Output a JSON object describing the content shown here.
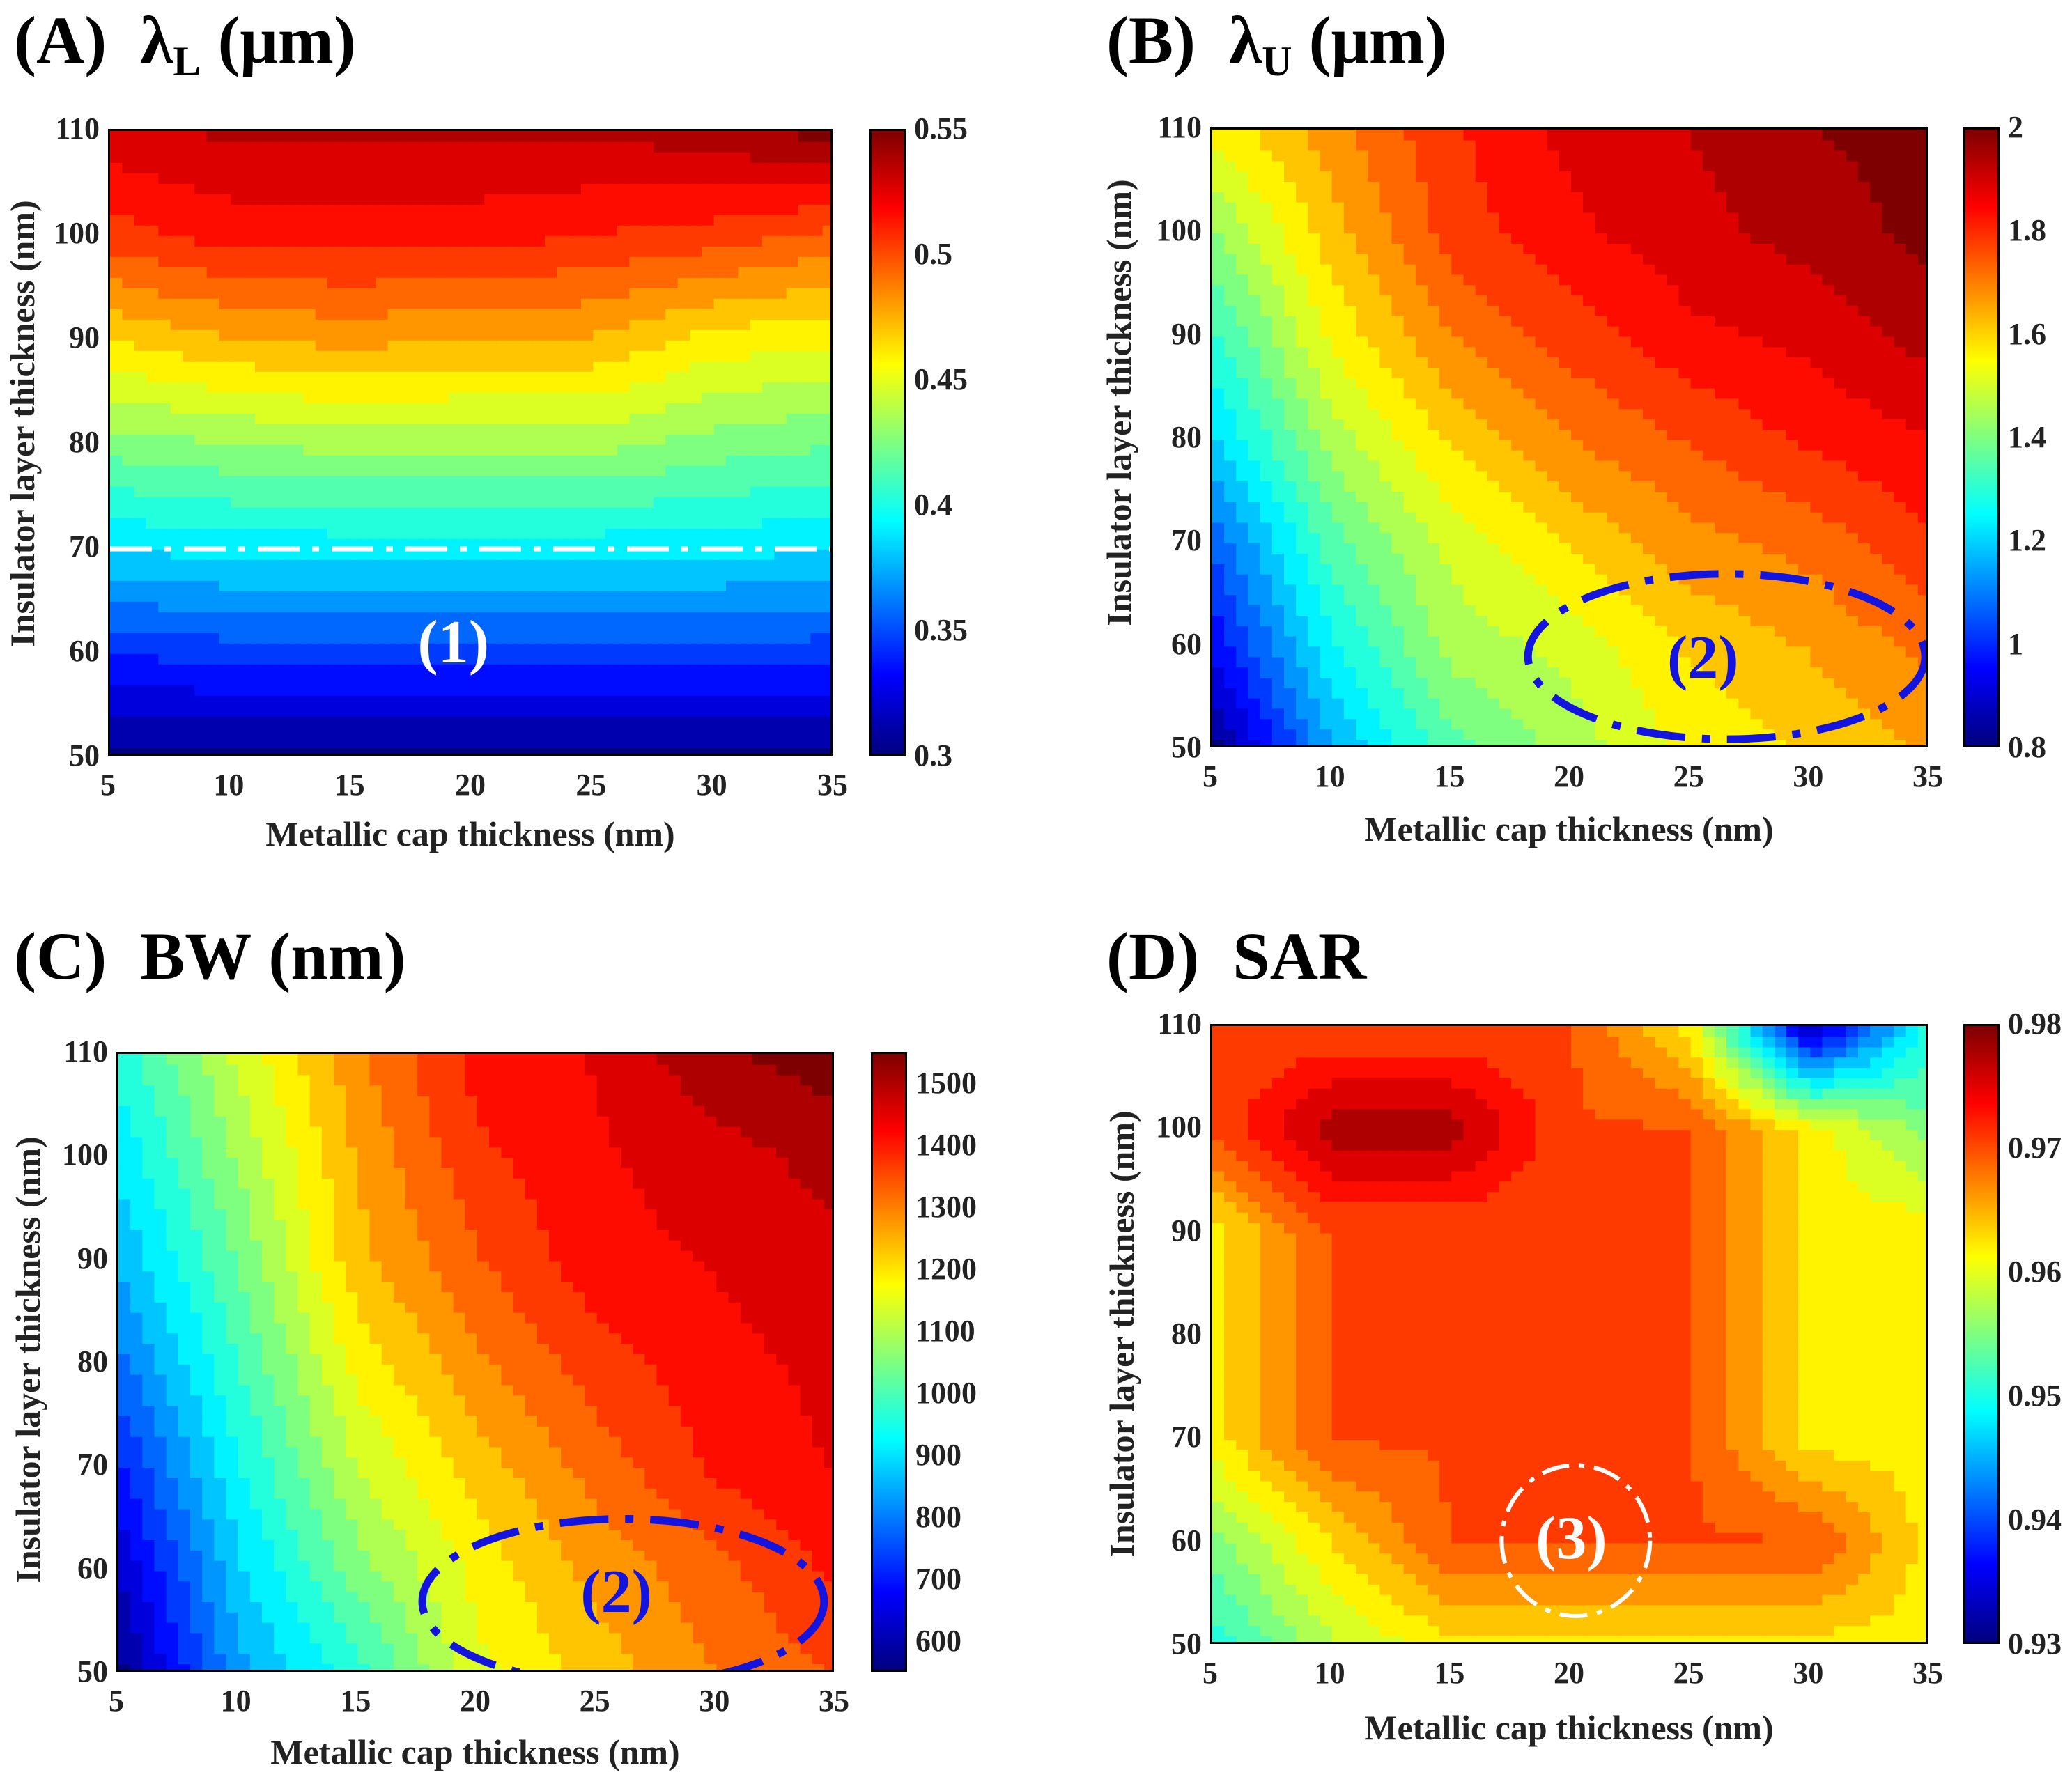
{
  "colors": {
    "jet_stops": [
      "#00007f",
      "#0000ff",
      "#007fff",
      "#00ffff",
      "#7fff7f",
      "#ffff00",
      "#ff7f00",
      "#ff0000",
      "#7f0000"
    ],
    "annotation_white": "#ffffff",
    "annotation_blue": "#1414e0"
  },
  "chart_data": [
    {
      "id": "A",
      "type": "heatmap",
      "title_prefix": "(A)",
      "title_main": "λ",
      "title_sub": "L",
      "title_unit": "(μm)",
      "xlabel": "Metallic cap thickness (nm)",
      "ylabel": "Insulator layer thickness (nm)",
      "x": [
        5,
        10,
        15,
        20,
        25,
        30,
        35
      ],
      "y": [
        50,
        60,
        70,
        80,
        90,
        100,
        110
      ],
      "xlim": [
        5,
        35
      ],
      "ylim": [
        50,
        110
      ],
      "x_ticks": [
        5,
        10,
        15,
        20,
        25,
        30,
        35
      ],
      "y_ticks": [
        50,
        60,
        70,
        80,
        90,
        100,
        110
      ],
      "z": [
        [
          0.3,
          0.3,
          0.3,
          0.3,
          0.3,
          0.3,
          0.3
        ],
        [
          0.34,
          0.345,
          0.345,
          0.345,
          0.345,
          0.345,
          0.345
        ],
        [
          0.385,
          0.39,
          0.39,
          0.39,
          0.39,
          0.39,
          0.385
        ],
        [
          0.425,
          0.43,
          0.435,
          0.435,
          0.435,
          0.425,
          0.42
        ],
        [
          0.465,
          0.475,
          0.48,
          0.475,
          0.475,
          0.46,
          0.455
        ],
        [
          0.505,
          0.515,
          0.515,
          0.515,
          0.51,
          0.505,
          0.495
        ],
        [
          0.53,
          0.535,
          0.535,
          0.535,
          0.535,
          0.54,
          0.55
        ]
      ],
      "zlim": [
        0.3,
        0.55
      ],
      "colorbar_ticks": [
        "0.3",
        "0.35",
        "0.4",
        "0.45",
        "0.5",
        "0.55"
      ],
      "annotations": [
        {
          "type": "dash-dot-line",
          "y": 70,
          "x_from": 5,
          "x_to": 35,
          "color": "white"
        },
        {
          "type": "label",
          "text": "(1)",
          "x": 19.3,
          "y": 60.8,
          "color": "white"
        }
      ]
    },
    {
      "id": "B",
      "type": "heatmap",
      "title_prefix": "(B)",
      "title_main": "λ",
      "title_sub": "U",
      "title_unit": "(μm)",
      "xlabel": "Metallic cap thickness (nm)",
      "ylabel": "Insulator layer thickness (nm)",
      "x": [
        5,
        10,
        15,
        20,
        25,
        30,
        35
      ],
      "y": [
        50,
        60,
        70,
        80,
        90,
        100,
        110
      ],
      "xlim": [
        5,
        35
      ],
      "ylim": [
        50,
        110
      ],
      "x_ticks": [
        5,
        10,
        15,
        20,
        25,
        30,
        35
      ],
      "y_ticks": [
        50,
        60,
        70,
        80,
        90,
        100,
        110
      ],
      "z": [
        [
          0.8,
          1.15,
          1.35,
          1.45,
          1.55,
          1.6,
          1.65
        ],
        [
          0.95,
          1.25,
          1.45,
          1.5,
          1.6,
          1.65,
          1.72
        ],
        [
          1.05,
          1.35,
          1.5,
          1.6,
          1.68,
          1.72,
          1.8
        ],
        [
          1.2,
          1.45,
          1.6,
          1.7,
          1.76,
          1.82,
          1.86
        ],
        [
          1.3,
          1.55,
          1.7,
          1.78,
          1.85,
          1.88,
          1.94
        ],
        [
          1.42,
          1.62,
          1.78,
          1.85,
          1.9,
          1.94,
          1.99
        ],
        [
          1.55,
          1.68,
          1.8,
          1.88,
          1.92,
          1.97,
          2.0
        ]
      ],
      "zlim": [
        0.8,
        2.0
      ],
      "colorbar_ticks": [
        "0.8",
        "1",
        "1.2",
        "1.4",
        "1.6",
        "1.8",
        "2"
      ],
      "annotations": [
        {
          "type": "dash-dot-ellipse",
          "cx": 26.5,
          "cy": 59,
          "rx": 8.3,
          "ry": 8,
          "color": "blue"
        },
        {
          "type": "label",
          "text": "(2)",
          "x": 25.6,
          "y": 58.6,
          "color": "blue"
        }
      ]
    },
    {
      "id": "C",
      "type": "heatmap",
      "title_prefix": "(C)",
      "title_main": "BW",
      "title_sub": "",
      "title_unit": "(nm)",
      "xlabel": "Metallic cap thickness (nm)",
      "ylabel": "Insulator layer thickness (nm)",
      "x": [
        5,
        10,
        15,
        20,
        25,
        30,
        35
      ],
      "y": [
        50,
        60,
        70,
        80,
        90,
        100,
        110
      ],
      "xlim": [
        5,
        35
      ],
      "ylim": [
        50,
        110
      ],
      "x_ticks": [
        5,
        10,
        15,
        20,
        25,
        30,
        35
      ],
      "y_ticks": [
        50,
        60,
        70,
        80,
        90,
        100,
        110
      ],
      "z": [
        [
          550,
          830,
          960,
          1150,
          1230,
          1300,
          1350
        ],
        [
          620,
          880,
          1050,
          1180,
          1270,
          1330,
          1400
        ],
        [
          700,
          930,
          1120,
          1230,
          1320,
          1400,
          1440
        ],
        [
          780,
          980,
          1180,
          1290,
          1370,
          1420,
          1450
        ],
        [
          850,
          1030,
          1240,
          1340,
          1420,
          1440,
          1470
        ],
        [
          900,
          1080,
          1260,
          1380,
          1430,
          1460,
          1500
        ],
        [
          950,
          1130,
          1290,
          1410,
          1440,
          1520,
          1550
        ]
      ],
      "zlim": [
        550,
        1550
      ],
      "colorbar_ticks": [
        "600",
        "700",
        "800",
        "900",
        "1000",
        "1100",
        "1200",
        "1300",
        "1400",
        "1500"
      ],
      "annotations": [
        {
          "type": "dash-dot-ellipse",
          "cx": 26.1,
          "cy": 57,
          "rx": 8.4,
          "ry": 8,
          "color": "blue"
        },
        {
          "type": "label",
          "text": "(2)",
          "x": 25.9,
          "y": 57.7,
          "color": "blue"
        }
      ]
    },
    {
      "id": "D",
      "type": "heatmap",
      "title_prefix": "(D)",
      "title_main": "SAR",
      "title_sub": "",
      "title_unit": "",
      "xlabel": "Metallic cap thickness (nm)",
      "ylabel": "Insulator layer thickness (nm)",
      "x": [
        5,
        10,
        15,
        20,
        25,
        30,
        35
      ],
      "y": [
        50,
        60,
        70,
        80,
        90,
        100,
        110
      ],
      "xlim": [
        5,
        35
      ],
      "ylim": [
        50,
        110
      ],
      "x_ticks": [
        5,
        10,
        15,
        20,
        25,
        30,
        35
      ],
      "y_ticks": [
        50,
        60,
        70,
        80,
        90,
        100,
        110
      ],
      "z": [
        [
          0.95,
          0.958,
          0.962,
          0.962,
          0.962,
          0.962,
          0.962
        ],
        [
          0.955,
          0.963,
          0.97,
          0.97,
          0.97,
          0.97,
          0.962
        ],
        [
          0.962,
          0.97,
          0.97,
          0.97,
          0.97,
          0.962,
          0.962
        ],
        [
          0.962,
          0.97,
          0.97,
          0.97,
          0.97,
          0.962,
          0.962
        ],
        [
          0.962,
          0.97,
          0.97,
          0.97,
          0.97,
          0.962,
          0.962
        ],
        [
          0.97,
          0.978,
          0.978,
          0.97,
          0.97,
          0.962,
          0.955
        ],
        [
          0.97,
          0.97,
          0.97,
          0.97,
          0.962,
          0.932,
          0.95
        ]
      ],
      "zlim": [
        0.93,
        0.98
      ],
      "colorbar_ticks": [
        "0.93",
        "0.94",
        "0.95",
        "0.96",
        "0.97",
        "0.98"
      ],
      "annotations": [
        {
          "type": "dash-dot-circle",
          "cx": 20.2,
          "cy": 60.2,
          "rx": 3.1,
          "ry": 7.3,
          "color": "white"
        },
        {
          "type": "label",
          "text": "(3)",
          "x": 20.1,
          "y": 60.2,
          "color": "white"
        }
      ]
    }
  ]
}
